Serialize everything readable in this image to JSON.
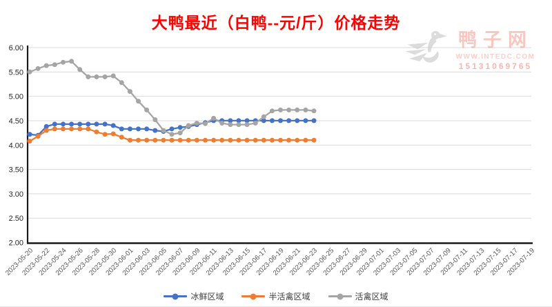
{
  "title": {
    "text": "大鸭最近（白鸭--元/斤）价格走势",
    "color": "#ff0000"
  },
  "watermark": {
    "site_name": "鸭子网",
    "url": "WWW.INTEDC.COM",
    "phone": "15131069765",
    "duck_icon": "duck-logo-icon"
  },
  "chart_data": {
    "type": "line",
    "title": "大鸭最近（白鸭--元/斤）价格走势",
    "ylim": [
      2.0,
      6.0
    ],
    "ytick_step": 0.5,
    "yticks": [
      "6.00",
      "5.50",
      "5.00",
      "4.50",
      "4.00",
      "3.50",
      "3.00",
      "2.50",
      "2.00"
    ],
    "grid": true,
    "legend_position": "bottom",
    "x_labels": [
      "2023-05-20",
      "2023-05-22",
      "2023-05-24",
      "2023-05-26",
      "2023-05-28",
      "2023-05-30",
      "2023-06-01",
      "2023-06-03",
      "2023-06-05",
      "2023-06-07",
      "2023-06-09",
      "2023-06-11",
      "2023-06-13",
      "2023-06-15",
      "2023-06-17",
      "2023-06-19",
      "2023-06-21",
      "2023-06-23",
      "2023-06-25",
      "2023-06-27",
      "2023-06-29",
      "2023-07-01",
      "2023-07-03",
      "2023-07-05",
      "2023-07-07",
      "2023-07-09",
      "2023-07-11",
      "2023-07-13",
      "2023-07-15",
      "2023-07-17",
      "2023-07-19"
    ],
    "x_label_interval_days": 2,
    "data_start_label": "2023-05-20",
    "data_end_label": "2023-06-23",
    "data_interval": "daily",
    "series": [
      {
        "name": "冰鲜区域",
        "color": "#4472c4",
        "values": [
          4.22,
          4.2,
          4.38,
          4.43,
          4.43,
          4.43,
          4.43,
          4.43,
          4.43,
          4.43,
          4.4,
          4.33,
          4.33,
          4.33,
          4.33,
          4.3,
          4.28,
          4.33,
          4.36,
          4.38,
          4.42,
          4.46,
          4.5,
          4.5,
          4.5,
          4.5,
          4.5,
          4.5,
          4.5,
          4.5,
          4.5,
          4.5,
          4.5,
          4.5,
          4.5
        ]
      },
      {
        "name": "半活禽区域",
        "color": "#ed7d31",
        "values": [
          4.08,
          4.18,
          4.3,
          4.33,
          4.33,
          4.33,
          4.33,
          4.33,
          4.27,
          4.22,
          4.23,
          4.16,
          4.1,
          4.1,
          4.1,
          4.1,
          4.1,
          4.1,
          4.1,
          4.1,
          4.1,
          4.1,
          4.1,
          4.1,
          4.1,
          4.1,
          4.1,
          4.1,
          4.1,
          4.1,
          4.1,
          4.1,
          4.1,
          4.1,
          4.1
        ]
      },
      {
        "name": "活禽区域",
        "color": "#a5a5a5",
        "values": [
          5.5,
          5.57,
          5.63,
          5.65,
          5.7,
          5.72,
          5.55,
          5.4,
          5.4,
          5.4,
          5.42,
          5.28,
          5.1,
          4.9,
          4.72,
          4.52,
          4.3,
          4.22,
          4.25,
          4.4,
          4.45,
          4.44,
          4.55,
          4.45,
          4.42,
          4.42,
          4.42,
          4.45,
          4.58,
          4.7,
          4.72,
          4.72,
          4.72,
          4.72,
          4.7
        ]
      }
    ]
  }
}
